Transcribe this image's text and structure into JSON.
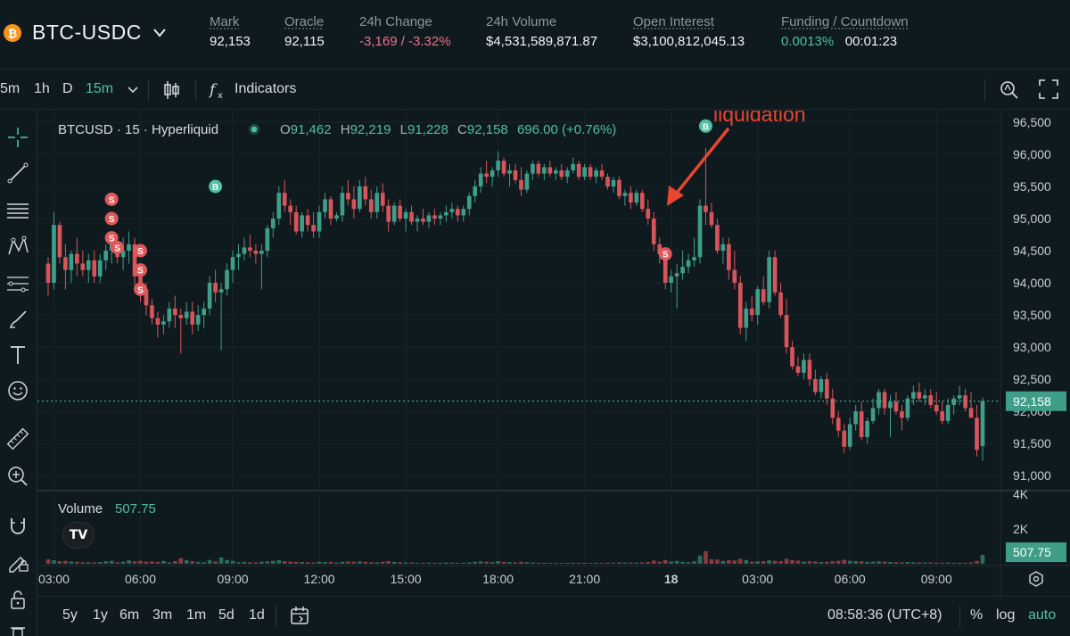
{
  "header": {
    "pair": "BTC-USDC",
    "coin_symbol": "₿",
    "mark": {
      "label": "Mark",
      "value": "92,153"
    },
    "oracle": {
      "label": "Oracle",
      "value": "92,115"
    },
    "change": {
      "label": "24h Change",
      "value": "-3,169 / -3.32%"
    },
    "volume": {
      "label": "24h Volume",
      "value": "$4,531,589,871.87"
    },
    "open_interest": {
      "label": "Open Interest",
      "value": "$3,100,812,045.13"
    },
    "funding": {
      "label": "Funding / Countdown",
      "rate": "0.0013%",
      "countdown": "00:01:23"
    }
  },
  "toolbar": {
    "intervals": [
      "5m",
      "1h",
      "D"
    ],
    "selected_interval": "15m",
    "indicators_label": "Indicators"
  },
  "legend": {
    "symbol": "BTCUSD · 15 · Hyperliquid",
    "o_label": "O",
    "o": "91,462",
    "h_label": "H",
    "h": "92,219",
    "l_label": "L",
    "l": "91,228",
    "c_label": "C",
    "c": "92,158",
    "change": "696.00 (+0.76%)",
    "volume_label": "Volume",
    "volume_value": "507.75"
  },
  "annotation": "liquidation",
  "bottom": {
    "ranges": [
      "5y",
      "1y",
      "6m",
      "3m",
      "1m",
      "5d",
      "1d"
    ],
    "time": "08:58:36 (UTC+8)",
    "pct": "%",
    "log": "log",
    "auto": "auto"
  },
  "colors": {
    "up": "#3f9e89",
    "down": "#d9545a",
    "accent": "#4fc0a2",
    "background": "#0f1a1f"
  },
  "chart_data": {
    "type": "candlestick",
    "price_axis": {
      "ticks": [
        91000,
        91500,
        92000,
        92500,
        93000,
        93500,
        94000,
        94500,
        95000,
        95500,
        96000,
        96500
      ],
      "range": [
        90850,
        96680
      ]
    },
    "volume_axis": {
      "ticks": [
        "2K",
        "4K"
      ],
      "max": 4000
    },
    "time_axis": {
      "labels": [
        "03:00",
        "06:00",
        "09:00",
        "12:00",
        "15:00",
        "18:00",
        "21:00",
        "18",
        "03:00",
        "06:00",
        "09:00"
      ]
    },
    "last_price": "92,158",
    "last_volume": "507.75",
    "candles_ohlcv": [
      [
        94300,
        94400,
        93800,
        94000,
        250
      ],
      [
        94000,
        95100,
        93900,
        94900,
        200
      ],
      [
        94900,
        94950,
        94300,
        94400,
        150
      ],
      [
        94400,
        94600,
        93900,
        94200,
        170
      ],
      [
        94200,
        94500,
        94000,
        94450,
        130
      ],
      [
        94450,
        94700,
        94100,
        94300,
        110
      ],
      [
        94300,
        94500,
        94100,
        94200,
        90
      ],
      [
        94200,
        94450,
        94000,
        94350,
        80
      ],
      [
        94350,
        94500,
        94000,
        94100,
        85
      ],
      [
        94100,
        94450,
        94000,
        94350,
        100
      ],
      [
        94350,
        94600,
        94200,
        94500,
        150
      ],
      [
        94500,
        94700,
        94300,
        94600,
        170
      ],
      [
        94600,
        94750,
        94300,
        94400,
        90
      ],
      [
        94400,
        94700,
        94200,
        94500,
        120
      ],
      [
        94500,
        94800,
        94300,
        94600,
        200
      ],
      [
        94600,
        94700,
        93900,
        94100,
        140
      ],
      [
        94100,
        94200,
        93700,
        93900,
        170
      ],
      [
        93900,
        94000,
        93500,
        93650,
        120
      ],
      [
        93650,
        93750,
        93350,
        93450,
        130
      ],
      [
        93450,
        93550,
        93150,
        93350,
        110
      ],
      [
        93350,
        93500,
        93200,
        93400,
        160
      ],
      [
        93400,
        93700,
        93300,
        93600,
        80
      ],
      [
        93600,
        93800,
        93300,
        93500,
        150
      ],
      [
        93500,
        93600,
        92900,
        93450,
        320
      ],
      [
        93450,
        93700,
        93350,
        93550,
        210
      ],
      [
        93550,
        93700,
        93200,
        93350,
        150
      ],
      [
        93350,
        93650,
        93250,
        93500,
        110
      ],
      [
        93500,
        93700,
        93300,
        93600,
        90
      ],
      [
        93600,
        94100,
        93500,
        94000,
        220
      ],
      [
        94000,
        94200,
        93700,
        93850,
        140
      ],
      [
        93850,
        94000,
        92950,
        93900,
        360
      ],
      [
        93900,
        94300,
        93800,
        94200,
        220
      ],
      [
        94200,
        94500,
        94000,
        94400,
        170
      ],
      [
        94400,
        94600,
        94200,
        94450,
        90
      ],
      [
        94450,
        94700,
        94350,
        94550,
        110
      ],
      [
        94550,
        94750,
        94400,
        94500,
        90
      ],
      [
        94500,
        94600,
        94300,
        94450,
        80
      ],
      [
        94450,
        94600,
        93900,
        94500,
        120
      ],
      [
        94500,
        94900,
        94400,
        94850,
        140
      ],
      [
        94850,
        95100,
        94700,
        95000,
        170
      ],
      [
        95000,
        95500,
        94900,
        95400,
        210
      ],
      [
        95400,
        95600,
        95100,
        95200,
        150
      ],
      [
        95200,
        95300,
        94900,
        95100,
        120
      ],
      [
        95100,
        95200,
        94750,
        94800,
        110
      ],
      [
        94800,
        95100,
        94700,
        95050,
        100
      ],
      [
        95050,
        95150,
        94800,
        94900,
        90
      ],
      [
        94900,
        95100,
        94700,
        94800,
        80
      ],
      [
        94800,
        95200,
        94700,
        95100,
        120
      ],
      [
        95100,
        95400,
        95000,
        95300,
        100
      ],
      [
        95300,
        95350,
        94900,
        95000,
        110
      ],
      [
        95000,
        95100,
        94950,
        95050,
        70
      ],
      [
        95050,
        95500,
        94950,
        95400,
        110
      ],
      [
        95400,
        95600,
        95200,
        95300,
        130
      ],
      [
        95300,
        95500,
        95000,
        95150,
        120
      ],
      [
        95150,
        95600,
        95100,
        95500,
        140
      ],
      [
        95500,
        95650,
        95200,
        95300,
        110
      ],
      [
        95300,
        95450,
        95000,
        95100,
        90
      ],
      [
        95100,
        95500,
        95000,
        95400,
        80
      ],
      [
        95400,
        95550,
        95100,
        95200,
        110
      ],
      [
        95200,
        95300,
        94800,
        94950,
        150
      ],
      [
        94950,
        95250,
        94900,
        95200,
        110
      ],
      [
        95200,
        95300,
        94950,
        95000,
        90
      ],
      [
        95000,
        95150,
        94800,
        95100,
        70
      ],
      [
        95100,
        95200,
        94900,
        94950,
        75
      ],
      [
        94950,
        95050,
        94800,
        95000,
        60
      ],
      [
        95000,
        95150,
        94900,
        94950,
        55
      ],
      [
        94950,
        95100,
        94850,
        95050,
        65
      ],
      [
        95050,
        95150,
        94900,
        95000,
        60
      ],
      [
        95000,
        95100,
        94900,
        95050,
        55
      ],
      [
        95050,
        95200,
        94950,
        95100,
        70
      ],
      [
        95100,
        95250,
        95000,
        95150,
        60
      ],
      [
        95150,
        95200,
        94950,
        95050,
        50
      ],
      [
        95050,
        95200,
        94950,
        95150,
        60
      ],
      [
        95150,
        95400,
        95050,
        95350,
        80
      ],
      [
        95350,
        95600,
        95250,
        95500,
        110
      ],
      [
        95500,
        95800,
        95400,
        95700,
        140
      ],
      [
        95700,
        95900,
        95550,
        95650,
        120
      ],
      [
        95650,
        95800,
        95500,
        95750,
        90
      ],
      [
        95750,
        96050,
        95650,
        95900,
        150
      ],
      [
        95900,
        95950,
        95650,
        95700,
        110
      ],
      [
        95700,
        95850,
        95500,
        95750,
        90
      ],
      [
        95750,
        95850,
        95550,
        95600,
        80
      ],
      [
        95600,
        95800,
        95350,
        95450,
        120
      ],
      [
        95450,
        95750,
        95400,
        95700,
        90
      ],
      [
        95700,
        95900,
        95600,
        95850,
        70
      ],
      [
        95850,
        95900,
        95650,
        95700,
        60
      ],
      [
        95700,
        95850,
        95600,
        95800,
        55
      ],
      [
        95800,
        95900,
        95650,
        95700,
        50
      ],
      [
        95700,
        95800,
        95600,
        95750,
        45
      ],
      [
        95750,
        95850,
        95600,
        95650,
        45
      ],
      [
        95650,
        95800,
        95550,
        95750,
        50
      ],
      [
        95750,
        95950,
        95700,
        95850,
        60
      ],
      [
        95850,
        95900,
        95600,
        95650,
        60
      ],
      [
        95650,
        95850,
        95600,
        95800,
        55
      ],
      [
        95800,
        95850,
        95600,
        95650,
        50
      ],
      [
        95650,
        95800,
        95550,
        95750,
        55
      ],
      [
        95750,
        95850,
        95600,
        95650,
        50
      ],
      [
        95650,
        95700,
        95450,
        95500,
        70
      ],
      [
        95500,
        95650,
        95400,
        95600,
        60
      ],
      [
        95600,
        95650,
        95300,
        95350,
        80
      ],
      [
        95350,
        95450,
        95200,
        95400,
        70
      ],
      [
        95400,
        95500,
        95150,
        95250,
        65
      ],
      [
        95250,
        95450,
        95200,
        95400,
        60
      ],
      [
        95400,
        95450,
        95100,
        95150,
        75
      ],
      [
        95150,
        95300,
        94900,
        95000,
        110
      ],
      [
        95000,
        95100,
        94500,
        94600,
        180
      ],
      [
        94600,
        94700,
        94300,
        94450,
        120
      ],
      [
        94450,
        94500,
        93900,
        94000,
        220
      ],
      [
        94000,
        94200,
        93850,
        94100,
        130
      ],
      [
        94100,
        94300,
        93600,
        94150,
        160
      ],
      [
        94150,
        94500,
        94050,
        94250,
        110
      ],
      [
        94250,
        94450,
        94150,
        94350,
        90
      ],
      [
        94350,
        94700,
        94250,
        94400,
        140
      ],
      [
        94400,
        95300,
        94300,
        95200,
        470
      ],
      [
        95200,
        96100,
        94900,
        95100,
        720
      ],
      [
        95100,
        95250,
        94850,
        94900,
        260
      ],
      [
        94900,
        95000,
        94450,
        94500,
        230
      ],
      [
        94500,
        94700,
        94300,
        94600,
        160
      ],
      [
        94600,
        94700,
        94050,
        94200,
        210
      ],
      [
        94200,
        94500,
        93900,
        94000,
        190
      ],
      [
        94000,
        94100,
        93200,
        93300,
        280
      ],
      [
        93300,
        93700,
        93100,
        93600,
        220
      ],
      [
        93600,
        93800,
        93400,
        93500,
        120
      ],
      [
        93500,
        93950,
        93350,
        93900,
        140
      ],
      [
        93900,
        94100,
        93650,
        93700,
        150
      ],
      [
        93700,
        94500,
        93600,
        94400,
        200
      ],
      [
        94400,
        94500,
        93800,
        93850,
        170
      ],
      [
        93850,
        94000,
        93450,
        93500,
        150
      ],
      [
        93500,
        93750,
        92900,
        93000,
        280
      ],
      [
        93000,
        93100,
        92650,
        92700,
        210
      ],
      [
        92700,
        92850,
        92550,
        92600,
        180
      ],
      [
        92600,
        92900,
        92500,
        92800,
        130
      ],
      [
        92800,
        92900,
        92400,
        92500,
        150
      ],
      [
        92500,
        92650,
        92250,
        92300,
        130
      ],
      [
        92300,
        92550,
        92200,
        92500,
        100
      ],
      [
        92500,
        92600,
        92100,
        92200,
        110
      ],
      [
        92200,
        92350,
        91800,
        91900,
        150
      ],
      [
        91900,
        92000,
        91600,
        91700,
        170
      ],
      [
        91700,
        91800,
        91350,
        91450,
        230
      ],
      [
        91450,
        91900,
        91400,
        91800,
        170
      ],
      [
        91800,
        92100,
        91700,
        92000,
        150
      ],
      [
        92000,
        92150,
        91550,
        91600,
        140
      ],
      [
        91600,
        91900,
        91500,
        91850,
        110
      ],
      [
        91850,
        92200,
        91800,
        92050,
        120
      ],
      [
        92050,
        92350,
        91950,
        92300,
        140
      ],
      [
        92300,
        92350,
        91950,
        92050,
        120
      ],
      [
        92050,
        92250,
        91600,
        92150,
        100
      ],
      [
        92150,
        92300,
        91950,
        92000,
        90
      ],
      [
        92000,
        92100,
        91700,
        91900,
        80
      ],
      [
        91900,
        92250,
        91850,
        92200,
        100
      ],
      [
        92200,
        92400,
        92100,
        92300,
        90
      ],
      [
        92300,
        92450,
        92150,
        92200,
        80
      ],
      [
        92200,
        92350,
        92100,
        92250,
        70
      ],
      [
        92250,
        92350,
        92050,
        92100,
        75
      ],
      [
        92100,
        92300,
        91950,
        92000,
        60
      ],
      [
        92000,
        92150,
        91800,
        91850,
        60
      ],
      [
        91850,
        92200,
        91800,
        92100,
        70
      ],
      [
        92100,
        92250,
        91950,
        92200,
        60
      ],
      [
        92200,
        92400,
        92100,
        92250,
        55
      ],
      [
        92250,
        92350,
        92000,
        92050,
        60
      ],
      [
        92050,
        92300,
        91950,
        91900,
        80
      ],
      [
        91900,
        92100,
        91300,
        91400,
        160
      ],
      [
        91462,
        92219,
        91228,
        92158,
        508
      ]
    ],
    "markers": [
      {
        "type": "S",
        "candle": 11,
        "price": 95300
      },
      {
        "type": "S",
        "candle": 11,
        "price": 95000
      },
      {
        "type": "S",
        "candle": 11,
        "price": 94700
      },
      {
        "type": "S",
        "candle": 12,
        "price": 94550
      },
      {
        "type": "S",
        "candle": 16,
        "price": 94500
      },
      {
        "type": "S",
        "candle": 16,
        "price": 94200
      },
      {
        "type": "S",
        "candle": 16,
        "price": 93900
      },
      {
        "type": "B",
        "candle": 29,
        "price": 95500
      },
      {
        "type": "S",
        "candle": 107,
        "price": 94450
      },
      {
        "type": "B",
        "candle": 114,
        "price": 96440
      }
    ]
  }
}
